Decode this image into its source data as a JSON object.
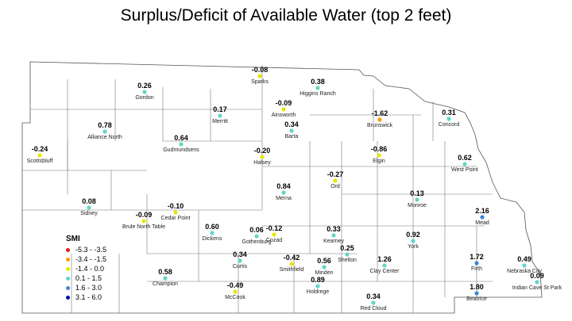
{
  "title": "Surplus/Deficit of Available Water (top 2 feet)",
  "legend": {
    "title": "SMI",
    "items": [
      {
        "label": "-5.3 - -3.5",
        "color": "#e31a1c"
      },
      {
        "label": "-3.4 - -1.5",
        "color": "#ff9a00"
      },
      {
        "label": "-1.4 - 0.0",
        "color": "#e6e60a"
      },
      {
        "label": "0.1 - 1.5",
        "color": "#62d6c6"
      },
      {
        "label": "1.6 - 3.0",
        "color": "#3b86d8"
      },
      {
        "label": "3.1 - 6.0",
        "color": "#0a0aa0"
      }
    ]
  },
  "stations": [
    {
      "name": "Sparks",
      "value": "-0.08",
      "color": "#e6e60a"
    },
    {
      "name": "Higgins Ranch",
      "value": "0.38",
      "color": "#62d6c6"
    },
    {
      "name": "Gordon",
      "value": "0.26",
      "color": "#62d6c6"
    },
    {
      "name": "Ainsworth",
      "value": "-0.09",
      "color": "#e6e60a"
    },
    {
      "name": "Merritt",
      "value": "0.17",
      "color": "#62d6c6"
    },
    {
      "name": "Bartа",
      "value": "0.34",
      "color": "#62d6c6"
    },
    {
      "name": "Brunswick",
      "value": "-1.62",
      "color": "#ff9a00"
    },
    {
      "name": "Concord",
      "value": "0.31",
      "color": "#62d6c6"
    },
    {
      "name": "Alliance North",
      "value": "0.78",
      "color": "#62d6c6"
    },
    {
      "name": "Gudmundsens",
      "value": "0.64",
      "color": "#62d6c6"
    },
    {
      "name": "Scottsbluff",
      "value": "-0.24",
      "color": "#e6e60a"
    },
    {
      "name": "Halsey",
      "value": "-0.20",
      "color": "#e6e60a"
    },
    {
      "name": "Elgin",
      "value": "-0.86",
      "color": "#e6e60a"
    },
    {
      "name": "West Point",
      "value": "0.62",
      "color": "#62d6c6"
    },
    {
      "name": "Ord",
      "value": "-0.27",
      "color": "#e6e60a"
    },
    {
      "name": "Merna",
      "value": "0.84",
      "color": "#62d6c6"
    },
    {
      "name": "Monroe",
      "value": "0.13",
      "color": "#62d6c6"
    },
    {
      "name": "Sidney",
      "value": "0.08",
      "color": "#62d6c6"
    },
    {
      "name": "Cedar Point",
      "value": "-0.10",
      "color": "#e6e60a"
    },
    {
      "name": "Brule North Table",
      "value": "-0.09",
      "color": "#e6e60a"
    },
    {
      "name": "Mead",
      "value": "2.16",
      "color": "#3b86d8"
    },
    {
      "name": "Dickens",
      "value": "0.60",
      "color": "#62d6c6"
    },
    {
      "name": "Gothenburg",
      "value": "0.06",
      "color": "#62d6c6"
    },
    {
      "name": "Cozad",
      "value": "-0.12",
      "color": "#e6e60a"
    },
    {
      "name": "Kearney",
      "value": "0.33",
      "color": "#62d6c6"
    },
    {
      "name": "York",
      "value": "0.92",
      "color": "#62d6c6"
    },
    {
      "name": "Shelton",
      "value": "0.25",
      "color": "#62d6c6"
    },
    {
      "name": "Curtis",
      "value": "0.34",
      "color": "#62d6c6"
    },
    {
      "name": "Champion",
      "value": "0.58",
      "color": "#62d6c6"
    },
    {
      "name": "Smithfield",
      "value": "-0.42",
      "color": "#e6e60a"
    },
    {
      "name": "Minden",
      "value": "0.56",
      "color": "#62d6c6"
    },
    {
      "name": "Clay Center",
      "value": "1.26",
      "color": "#62d6c6"
    },
    {
      "name": "Firth",
      "value": "1.72",
      "color": "#3b86d8"
    },
    {
      "name": "Nebraska City",
      "value": "0.49",
      "color": "#62d6c6"
    },
    {
      "name": "McCook",
      "value": "-0.49",
      "color": "#e6e60a"
    },
    {
      "name": "Holdrege",
      "value": "0.89",
      "color": "#62d6c6"
    },
    {
      "name": "Indian Cave St Park",
      "value": "0.09",
      "color": "#62d6c6"
    },
    {
      "name": "Beatrice",
      "value": "1.80",
      "color": "#3b86d8"
    },
    {
      "name": "Red Cloud",
      "value": "0.34",
      "color": "#62d6c6"
    }
  ]
}
